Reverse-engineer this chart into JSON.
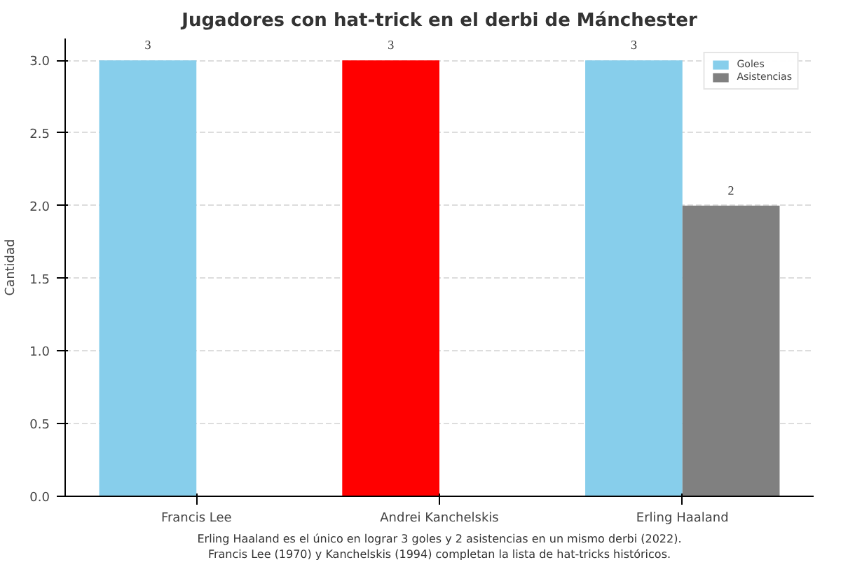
{
  "chart_data": {
    "type": "bar",
    "title": "Jugadores con hat-trick en el derbi de Mánchester",
    "ylabel": "Cantidad",
    "categories": [
      "Francis Lee",
      "Andrei Kanchelskis",
      "Erling Haaland"
    ],
    "series": [
      {
        "name": "Goles",
        "color": "#87ceeb",
        "colors": [
          "#87ceeb",
          "#ff0000",
          "#87ceeb"
        ],
        "values": [
          3,
          3,
          3
        ]
      },
      {
        "name": "Asistencias",
        "color": "#808080",
        "colors": [
          "#808080",
          "#808080",
          "#808080"
        ],
        "values": [
          null,
          null,
          2
        ]
      }
    ],
    "ylim": [
      0,
      3.15
    ],
    "yticks": [
      {
        "value": 0,
        "label": "0.0"
      },
      {
        "value": 0.5,
        "label": "0.5"
      },
      {
        "value": 1,
        "label": "1.0"
      },
      {
        "value": 1.5,
        "label": "1.5"
      },
      {
        "value": 2,
        "label": "2.0"
      },
      {
        "value": 2.5,
        "label": "2.5"
      },
      {
        "value": 3,
        "label": "3.0"
      }
    ],
    "grid": "y",
    "legend": "top right",
    "data_labels": true,
    "annotations": [
      "Erling Haaland es el único en lograr 3 goles y 2 asistencias en un mismo derbi (2022).",
      "Francis Lee (1970) y Kanchelskis (1994) completan la lista de hat-tricks históricos."
    ]
  }
}
